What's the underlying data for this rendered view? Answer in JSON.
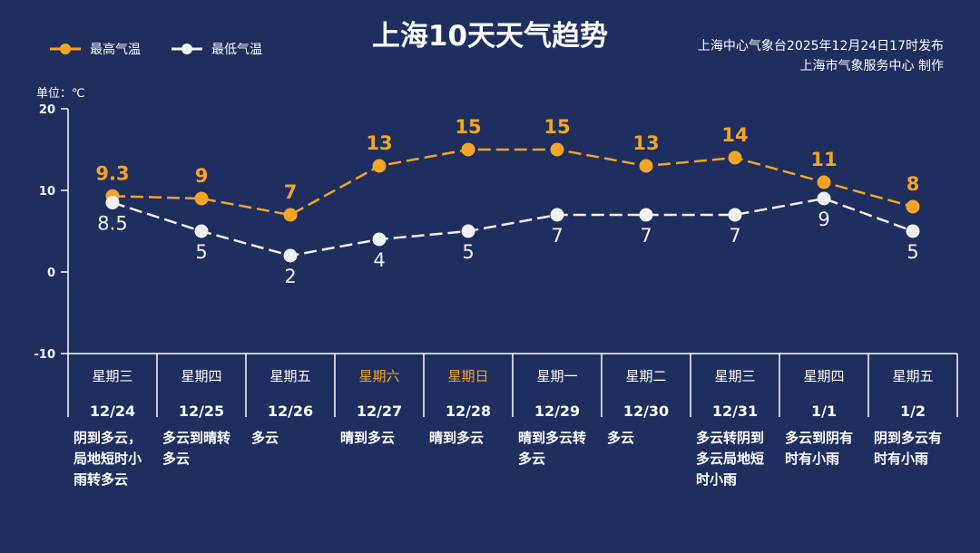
{
  "title": "上海10天天气趋势",
  "issuer": {
    "line1": "上海中心气象台2025年12月24日17时发布",
    "line2": "上海市气象服务中心  制作"
  },
  "legend": {
    "high": "最高气温",
    "low": "最低气温"
  },
  "unit_label": "单位：℃",
  "colors": {
    "background": "#1e2e5f",
    "high": "#f4a524",
    "low": "#f2f2f2",
    "weekend": "#f4a524"
  },
  "days": [
    {
      "weekday": "星期三",
      "date": "12/24",
      "weather": "阴到多云，局地短时小雨转多云",
      "weekend": false
    },
    {
      "weekday": "星期四",
      "date": "12/25",
      "weather": "多云到晴转多云",
      "weekend": false
    },
    {
      "weekday": "星期五",
      "date": "12/26",
      "weather": "多云",
      "weekend": false
    },
    {
      "weekday": "星期六",
      "date": "12/27",
      "weather": "晴到多云",
      "weekend": true
    },
    {
      "weekday": "星期日",
      "date": "12/28",
      "weather": "晴到多云",
      "weekend": true
    },
    {
      "weekday": "星期一",
      "date": "12/29",
      "weather": "晴到多云转多云",
      "weekend": false
    },
    {
      "weekday": "星期二",
      "date": "12/30",
      "weather": "多云",
      "weekend": false
    },
    {
      "weekday": "星期三",
      "date": "12/31",
      "weather": "多云转阴到多云局地短时小雨",
      "weekend": false
    },
    {
      "weekday": "星期四",
      "date": "1/1",
      "weather": "多云到阴有时有小雨",
      "weekend": false
    },
    {
      "weekday": "星期五",
      "date": "1/2",
      "weather": "阴到多云有时有小雨",
      "weekend": false
    }
  ],
  "chart_data": {
    "type": "line",
    "title": "上海10天天气趋势",
    "ylabel": "单位：℃",
    "categories": [
      "12/24",
      "12/25",
      "12/26",
      "12/27",
      "12/28",
      "12/29",
      "12/30",
      "12/31",
      "1/1",
      "1/2"
    ],
    "ylim": [
      -10,
      20
    ],
    "yticks": [
      -10,
      0,
      10,
      20
    ],
    "series": [
      {
        "name": "最高气温",
        "values": [
          9.3,
          9,
          7,
          13,
          15,
          15,
          13,
          14,
          11,
          8
        ],
        "labels": [
          "9.3",
          "9",
          "7",
          "13",
          "15",
          "15",
          "13",
          "14",
          "11",
          "8"
        ]
      },
      {
        "name": "最低气温",
        "values": [
          8.5,
          5,
          2,
          4,
          5,
          7,
          7,
          7,
          9,
          5
        ],
        "labels": [
          "8.5",
          "5",
          "2",
          "4",
          "5",
          "7",
          "7",
          "7",
          "9",
          "5"
        ]
      }
    ]
  }
}
